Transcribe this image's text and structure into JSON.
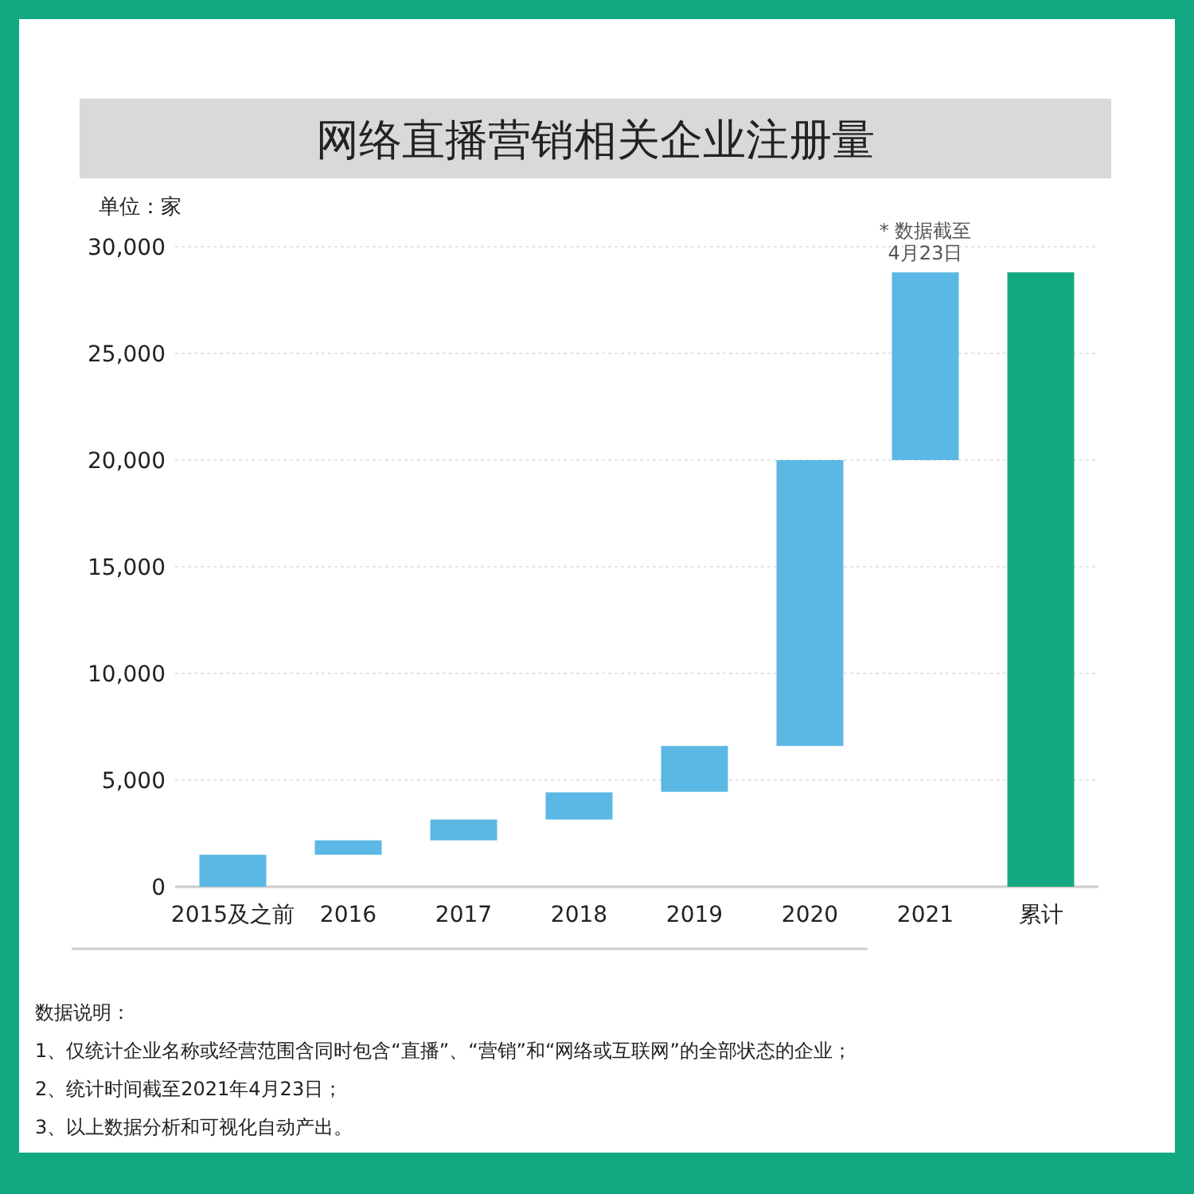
{
  "chart_data": {
    "type": "bar",
    "title": "网络直播营销相关企业注册量",
    "ylabel": "单位：家",
    "categories": [
      "2015及之前",
      "2016",
      "2017",
      "2018",
      "2019",
      "2020",
      "2021",
      "累计"
    ],
    "values": [
      1500,
      675,
      975,
      1275,
      2150,
      13400,
      8800,
      28800
    ],
    "base": [
      0,
      1500,
      2175,
      3150,
      4450,
      6600,
      20000,
      0
    ],
    "colors": [
      "#5bb8e4",
      "#5bb8e4",
      "#5bb8e4",
      "#5bb8e4",
      "#5bb8e4",
      "#5bb8e4",
      "#5bb8e4",
      "#12a982"
    ],
    "ylim": [
      0,
      30000
    ],
    "yticks": [
      {
        "value": 0,
        "label": "0"
      },
      {
        "value": 5000,
        "label": "5,000"
      },
      {
        "value": 10000,
        "label": "10,000"
      },
      {
        "value": 15000,
        "label": "15,000"
      },
      {
        "value": 20000,
        "label": "20,000"
      },
      {
        "value": 25000,
        "label": "25,000"
      },
      {
        "value": 30000,
        "label": "30,000"
      }
    ],
    "grid": "y",
    "annotations": [
      {
        "text": "* 数据截至\n4月23日",
        "x": "2021",
        "y": 28800
      },
      "数据说明：",
      "1、仅统计企业名称或经营范围含同时包含“直播”、“营销”和“网络或互联网”的全部状态的企业；",
      "2、统计时间截至2021年4月23日；",
      "3、以上数据分析和可视化自动产出。"
    ]
  }
}
